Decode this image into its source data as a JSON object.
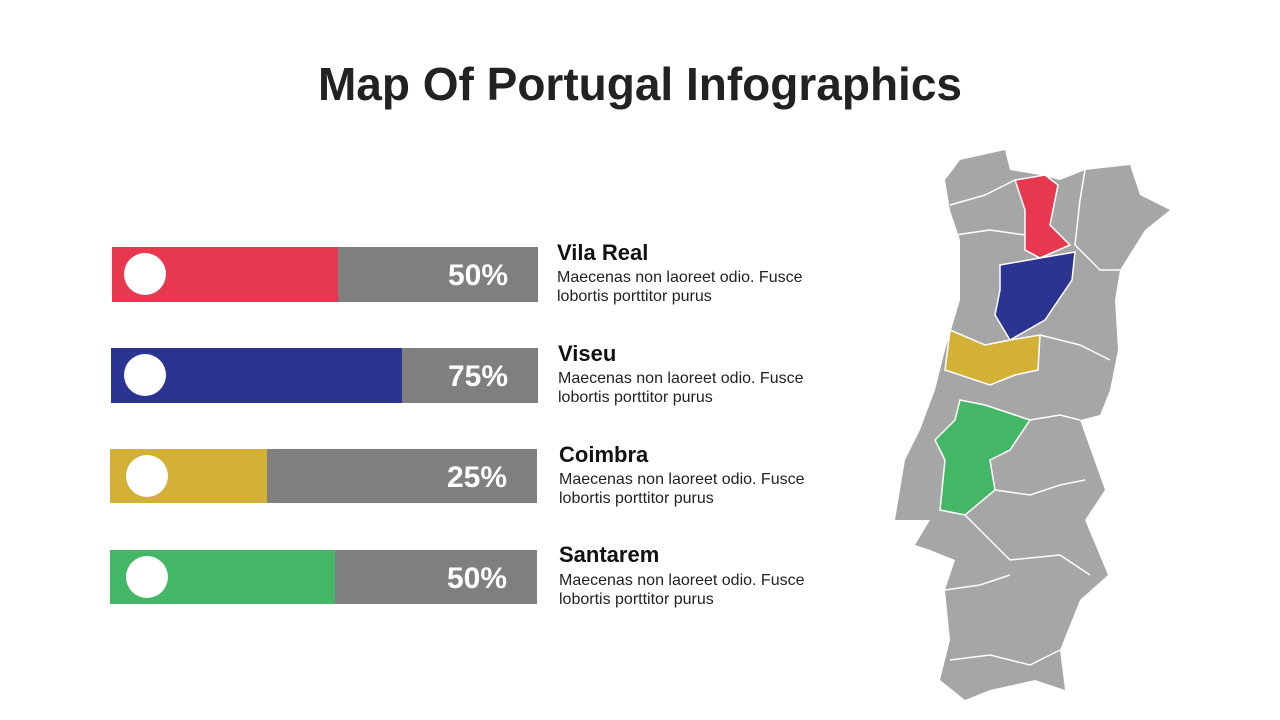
{
  "header": {
    "title": "Map Of Portugal Infographics"
  },
  "items": [
    {
      "percent": "50%",
      "name": "Vila Real",
      "description": [
        "Maecenas non laoreet odio. Fusce",
        "lobortis porttitor purus"
      ]
    },
    {
      "percent": "75%",
      "name": "Viseu",
      "description": [
        "Maecenas non laoreet odio. Fusce",
        "lobortis porttitor purus"
      ]
    },
    {
      "percent": "25%",
      "name": "Coimbra",
      "description": [
        "Maecenas non laoreet odio. Fusce",
        "lobortis porttitor purus"
      ]
    },
    {
      "percent": "50%",
      "name": "Santarem",
      "description": [
        "Maecenas non laoreet odio. Fusce",
        "lobortis porttitor purus"
      ]
    }
  ]
}
